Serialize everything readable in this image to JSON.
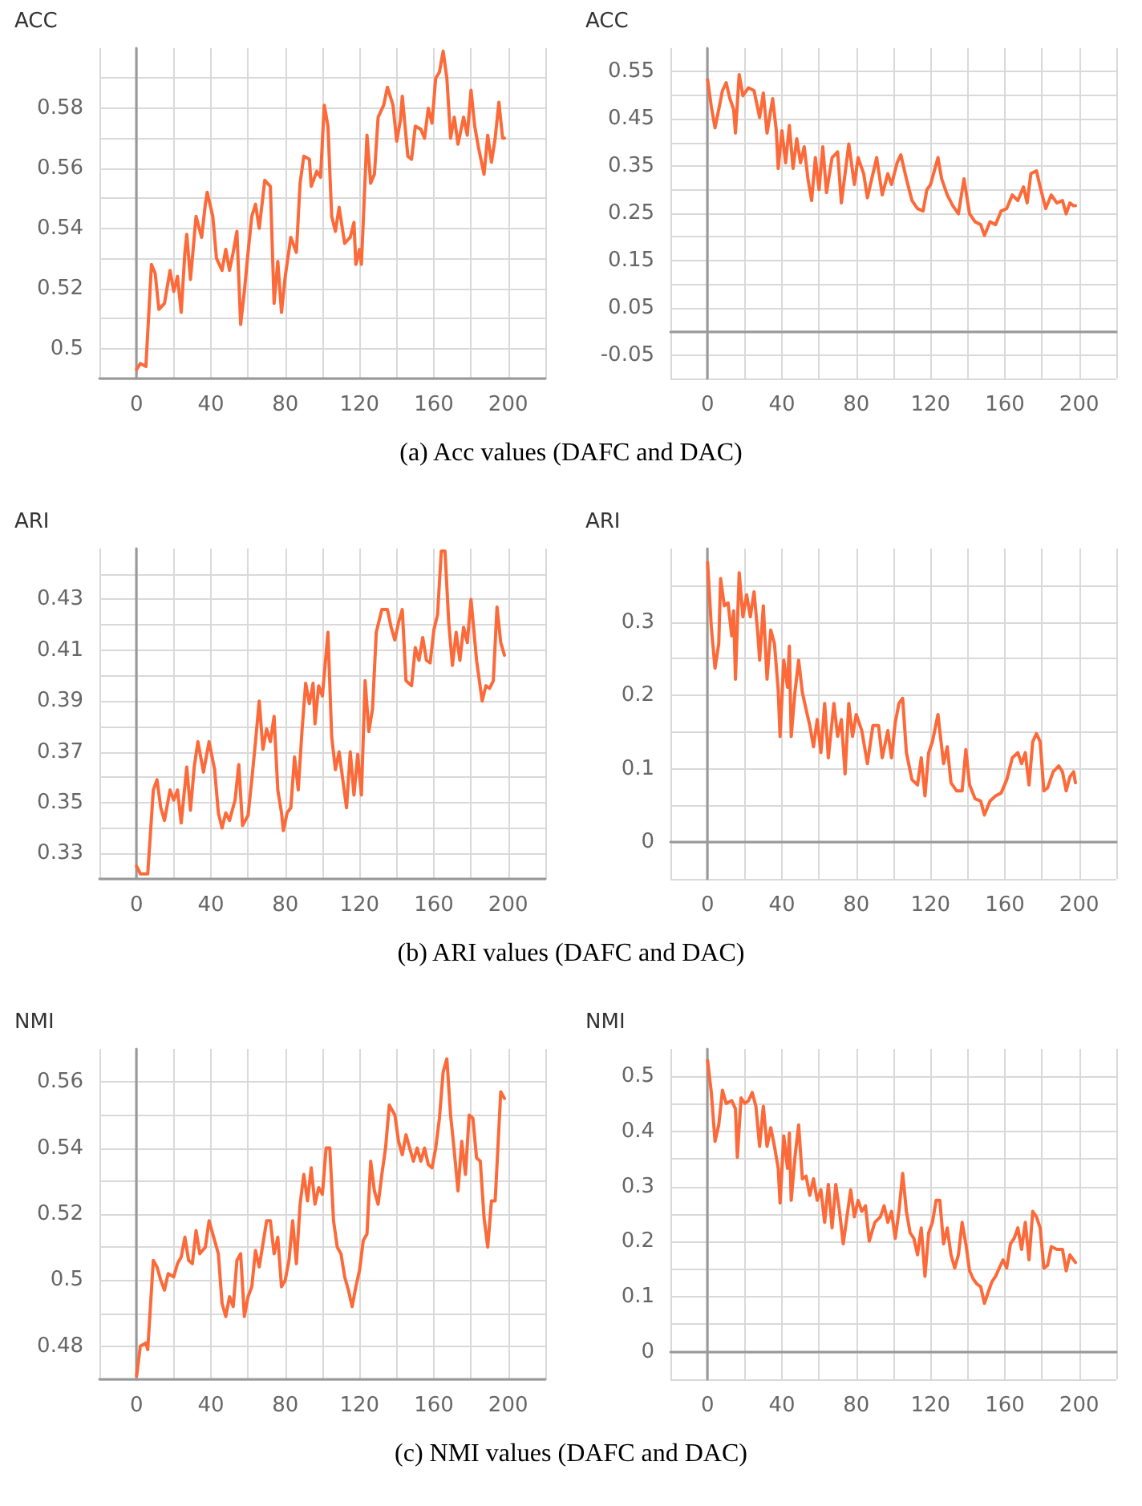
{
  "chart_data": [
    {
      "type": "line",
      "title": "ACC",
      "annotations": [
        "(a)  Acc values (DAFC and DAC)"
      ],
      "grid": true,
      "marker": "none",
      "line_style": "solid",
      "xlim": [
        -20,
        220
      ],
      "xticks": [
        {
          "value": -20,
          "label": null
        },
        0,
        {
          "value": 20,
          "label": null
        },
        40,
        {
          "value": 60,
          "label": null
        },
        80,
        {
          "value": 100,
          "label": null
        },
        120,
        {
          "value": 140,
          "label": null
        },
        160,
        {
          "value": 180,
          "label": null
        },
        200,
        {
          "value": 220,
          "label": null
        }
      ],
      "ylim": [
        0.49,
        0.6
      ],
      "yticks": [
        {
          "value": 0.49,
          "label": null
        },
        0.5,
        {
          "value": 0.51,
          "label": null
        },
        0.52,
        {
          "value": 0.53,
          "label": null
        },
        0.54,
        {
          "value": 0.55,
          "label": null
        },
        0.56,
        {
          "value": 0.57,
          "label": null
        },
        0.58,
        {
          "value": 0.59,
          "label": null
        }
      ],
      "series": [
        {
          "color": "#fc6a3a",
          "x": [
            0,
            2,
            5,
            8,
            10,
            12,
            15,
            18,
            20,
            22,
            24,
            26,
            27,
            29,
            32,
            35,
            37,
            38,
            41,
            43,
            46,
            48,
            50,
            52,
            54,
            56,
            58,
            60,
            62,
            64,
            66,
            69,
            72,
            74,
            76,
            78,
            80,
            83,
            86,
            88,
            90,
            93,
            94,
            97,
            99,
            101,
            103,
            105,
            107,
            109,
            112,
            115,
            117,
            118,
            120,
            121,
            124,
            126,
            128,
            130,
            133,
            135,
            138,
            140,
            142,
            143,
            146,
            148,
            150,
            153,
            155,
            157,
            159,
            161,
            163,
            165,
            167,
            169,
            171,
            173,
            176,
            178,
            180,
            182,
            184,
            187,
            189,
            191,
            193,
            195,
            197,
            198
          ],
          "values": [
            0.493,
            0.495,
            0.494,
            0.528,
            0.525,
            0.513,
            0.515,
            0.526,
            0.519,
            0.524,
            0.512,
            0.532,
            0.538,
            0.523,
            0.544,
            0.537,
            0.548,
            0.552,
            0.544,
            0.53,
            0.526,
            0.533,
            0.526,
            0.532,
            0.539,
            0.508,
            0.519,
            0.532,
            0.544,
            0.548,
            0.54,
            0.556,
            0.554,
            0.515,
            0.529,
            0.512,
            0.524,
            0.537,
            0.532,
            0.555,
            0.564,
            0.563,
            0.554,
            0.559,
            0.557,
            0.581,
            0.574,
            0.544,
            0.539,
            0.547,
            0.535,
            0.537,
            0.542,
            0.528,
            0.533,
            0.528,
            0.571,
            0.555,
            0.558,
            0.577,
            0.581,
            0.587,
            0.581,
            0.569,
            0.576,
            0.584,
            0.564,
            0.563,
            0.574,
            0.573,
            0.57,
            0.58,
            0.575,
            0.59,
            0.592,
            0.599,
            0.59,
            0.57,
            0.577,
            0.568,
            0.577,
            0.571,
            0.586,
            0.574,
            0.567,
            0.558,
            0.571,
            0.562,
            0.57,
            0.582,
            0.57,
            0.57
          ]
        }
      ]
    },
    {
      "type": "line",
      "title": "ACC",
      "grid": true,
      "marker": "none",
      "line_style": "solid",
      "xlim": [
        -20,
        220
      ],
      "xticks": [
        {
          "value": -20,
          "label": null
        },
        0,
        {
          "value": 20,
          "label": null
        },
        40,
        {
          "value": 60,
          "label": null
        },
        80,
        {
          "value": 100,
          "label": null
        },
        120,
        {
          "value": 140,
          "label": null
        },
        160,
        {
          "value": 180,
          "label": null
        },
        200,
        {
          "value": 220,
          "label": null
        }
      ],
      "ylim": [
        -0.1,
        0.6
      ],
      "yticks": [
        {
          "value": -0.1,
          "label": null
        },
        -0.05,
        {
          "value": 0,
          "label": null
        },
        0.05,
        {
          "value": 0.1,
          "label": null
        },
        0.15,
        {
          "value": 0.2,
          "label": null
        },
        0.25,
        {
          "value": 0.3,
          "label": null
        },
        0.35,
        {
          "value": 0.4,
          "label": null
        },
        0.45,
        {
          "value": 0.5,
          "label": null
        },
        0.55
      ],
      "series": [
        {
          "color": "#fc6a3a",
          "x": [
            0,
            2,
            4,
            6,
            8,
            10,
            12,
            14,
            15,
            17,
            19,
            22,
            25,
            28,
            30,
            32,
            35,
            37,
            38,
            40,
            42,
            44,
            46,
            48,
            50,
            52,
            54,
            56,
            58,
            60,
            62,
            64,
            67,
            70,
            72,
            74,
            76,
            79,
            81,
            84,
            86,
            88,
            91,
            94,
            97,
            99,
            102,
            104,
            107,
            110,
            113,
            116,
            118,
            120,
            124,
            126,
            129,
            132,
            135,
            138,
            141,
            144,
            147,
            149,
            152,
            155,
            158,
            161,
            164,
            167,
            170,
            172,
            174,
            177,
            179,
            182,
            185,
            188,
            191,
            193,
            195,
            197,
            198
          ],
          "values": [
            0.533,
            0.476,
            0.431,
            0.47,
            0.51,
            0.527,
            0.493,
            0.47,
            0.42,
            0.544,
            0.499,
            0.516,
            0.51,
            0.453,
            0.505,
            0.42,
            0.493,
            0.425,
            0.345,
            0.425,
            0.357,
            0.436,
            0.345,
            0.408,
            0.357,
            0.391,
            0.323,
            0.277,
            0.368,
            0.3,
            0.391,
            0.294,
            0.368,
            0.38,
            0.272,
            0.334,
            0.397,
            0.311,
            0.368,
            0.334,
            0.283,
            0.317,
            0.368,
            0.289,
            0.334,
            0.311,
            0.357,
            0.374,
            0.323,
            0.277,
            0.26,
            0.255,
            0.3,
            0.311,
            0.368,
            0.323,
            0.289,
            0.266,
            0.249,
            0.323,
            0.249,
            0.232,
            0.226,
            0.203,
            0.232,
            0.226,
            0.255,
            0.26,
            0.289,
            0.277,
            0.306,
            0.272,
            0.334,
            0.34,
            0.306,
            0.26,
            0.289,
            0.272,
            0.277,
            0.249,
            0.272,
            0.266,
            0.266
          ]
        }
      ]
    },
    {
      "type": "line",
      "title": "ARI",
      "annotations": [
        "(b)  ARI values (DAFC and DAC)"
      ],
      "grid": true,
      "marker": "none",
      "line_style": "solid",
      "xlim": [
        -20,
        220
      ],
      "xticks": [
        {
          "value": -20,
          "label": null
        },
        0,
        {
          "value": 20,
          "label": null
        },
        40,
        {
          "value": 60,
          "label": null
        },
        80,
        {
          "value": 100,
          "label": null
        },
        120,
        {
          "value": 140,
          "label": null
        },
        160,
        {
          "value": 180,
          "label": null
        },
        200,
        {
          "value": 220,
          "label": null
        }
      ],
      "ylim": [
        0.32,
        0.45
      ],
      "yticks": [
        {
          "value": 0.32,
          "label": null
        },
        0.33,
        {
          "value": 0.34,
          "label": null
        },
        0.35,
        {
          "value": 0.36,
          "label": null
        },
        0.37,
        {
          "value": 0.38,
          "label": null
        },
        0.39,
        {
          "value": 0.4,
          "label": null
        },
        0.41,
        {
          "value": 0.42,
          "label": null
        },
        0.43,
        {
          "value": 0.44,
          "label": null
        }
      ],
      "series": [
        {
          "color": "#fc6a3a",
          "x": [
            0,
            2,
            6,
            9,
            11,
            13,
            15,
            18,
            20,
            22,
            24,
            27,
            29,
            31,
            33,
            36,
            39,
            42,
            44,
            46,
            48,
            50,
            53,
            55,
            57,
            60,
            62,
            64,
            66,
            68,
            70,
            72,
            74,
            76,
            78,
            79,
            81,
            83,
            85,
            87,
            89,
            91,
            93,
            95,
            96,
            98,
            100,
            103,
            105,
            107,
            109,
            111,
            113,
            115,
            117,
            119,
            121,
            123,
            125,
            127,
            129,
            132,
            135,
            137,
            139,
            141,
            143,
            145,
            148,
            150,
            152,
            154,
            156,
            158,
            160,
            162,
            164,
            166,
            168,
            170,
            172,
            174,
            176,
            178,
            180,
            183,
            186,
            188,
            190,
            192,
            194,
            196,
            198
          ],
          "values": [
            0.325,
            0.322,
            0.322,
            0.355,
            0.359,
            0.348,
            0.343,
            0.355,
            0.351,
            0.355,
            0.342,
            0.364,
            0.347,
            0.364,
            0.374,
            0.362,
            0.374,
            0.363,
            0.346,
            0.34,
            0.346,
            0.343,
            0.351,
            0.365,
            0.341,
            0.345,
            0.359,
            0.374,
            0.39,
            0.371,
            0.379,
            0.374,
            0.384,
            0.355,
            0.346,
            0.339,
            0.346,
            0.348,
            0.368,
            0.355,
            0.378,
            0.397,
            0.389,
            0.397,
            0.381,
            0.396,
            0.392,
            0.417,
            0.376,
            0.363,
            0.37,
            0.359,
            0.348,
            0.37,
            0.353,
            0.369,
            0.353,
            0.398,
            0.378,
            0.387,
            0.417,
            0.426,
            0.426,
            0.419,
            0.414,
            0.421,
            0.426,
            0.398,
            0.396,
            0.411,
            0.406,
            0.415,
            0.406,
            0.405,
            0.418,
            0.424,
            0.449,
            0.449,
            0.421,
            0.404,
            0.417,
            0.406,
            0.419,
            0.413,
            0.43,
            0.406,
            0.39,
            0.396,
            0.395,
            0.398,
            0.427,
            0.413,
            0.408
          ]
        }
      ]
    },
    {
      "type": "line",
      "title": "ARI",
      "grid": true,
      "marker": "none",
      "line_style": "solid",
      "xlim": [
        -20,
        220
      ],
      "xticks": [
        {
          "value": -20,
          "label": null
        },
        0,
        {
          "value": 20,
          "label": null
        },
        40,
        {
          "value": 60,
          "label": null
        },
        80,
        {
          "value": 100,
          "label": null
        },
        120,
        {
          "value": 140,
          "label": null
        },
        160,
        {
          "value": 180,
          "label": null
        },
        200,
        {
          "value": 220,
          "label": null
        }
      ],
      "ylim": [
        -0.05,
        0.4
      ],
      "yticks": [
        {
          "value": -0.05,
          "label": null
        },
        0,
        {
          "value": 0.05,
          "label": null
        },
        0.1,
        {
          "value": 0.15,
          "label": null
        },
        0.2,
        {
          "value": 0.25,
          "label": null
        },
        0.3,
        {
          "value": 0.35,
          "label": null
        }
      ],
      "series": [
        {
          "color": "#fc6a3a",
          "x": [
            0,
            2,
            4,
            6,
            7,
            9,
            11,
            13,
            14,
            15,
            17,
            19,
            21,
            23,
            25,
            27,
            28,
            30,
            32,
            34,
            36,
            38,
            39,
            41,
            43,
            44,
            45,
            47,
            49,
            51,
            53,
            55,
            57,
            59,
            61,
            63,
            65,
            68,
            70,
            72,
            74,
            76,
            78,
            80,
            83,
            86,
            89,
            92,
            94,
            97,
            99,
            101,
            103,
            105,
            107,
            110,
            113,
            115,
            117,
            119,
            121,
            124,
            127,
            129,
            131,
            134,
            137,
            139,
            141,
            144,
            147,
            149,
            152,
            155,
            158,
            161,
            164,
            167,
            169,
            171,
            173,
            175,
            177,
            179,
            181,
            183,
            186,
            189,
            191,
            193,
            195,
            197,
            198
          ],
          "values": [
            0.381,
            0.293,
            0.237,
            0.27,
            0.359,
            0.322,
            0.326,
            0.281,
            0.315,
            0.222,
            0.367,
            0.307,
            0.337,
            0.307,
            0.341,
            0.285,
            0.248,
            0.322,
            0.222,
            0.289,
            0.27,
            0.207,
            0.144,
            0.248,
            0.211,
            0.267,
            0.144,
            0.204,
            0.248,
            0.204,
            0.181,
            0.159,
            0.13,
            0.167,
            0.122,
            0.189,
            0.115,
            0.189,
            0.144,
            0.167,
            0.093,
            0.189,
            0.144,
            0.174,
            0.152,
            0.107,
            0.159,
            0.159,
            0.115,
            0.152,
            0.115,
            0.163,
            0.189,
            0.196,
            0.122,
            0.085,
            0.078,
            0.115,
            0.063,
            0.122,
            0.137,
            0.174,
            0.107,
            0.13,
            0.081,
            0.07,
            0.07,
            0.126,
            0.078,
            0.059,
            0.056,
            0.037,
            0.056,
            0.063,
            0.067,
            0.085,
            0.115,
            0.122,
            0.107,
            0.122,
            0.078,
            0.137,
            0.148,
            0.137,
            0.07,
            0.074,
            0.096,
            0.104,
            0.096,
            0.07,
            0.089,
            0.096,
            0.081
          ]
        }
      ]
    },
    {
      "type": "line",
      "title": "NMI",
      "annotations": [
        "(c)  NMI values (DAFC and DAC)"
      ],
      "grid": true,
      "marker": "none",
      "line_style": "solid",
      "xlim": [
        -20,
        220
      ],
      "xticks": [
        {
          "value": -20,
          "label": null
        },
        0,
        {
          "value": 20,
          "label": null
        },
        40,
        {
          "value": 60,
          "label": null
        },
        80,
        {
          "value": 100,
          "label": null
        },
        120,
        {
          "value": 140,
          "label": null
        },
        160,
        {
          "value": 180,
          "label": null
        },
        200,
        {
          "value": 220,
          "label": null
        }
      ],
      "ylim": [
        0.47,
        0.57
      ],
      "yticks": [
        {
          "value": 0.47,
          "label": null
        },
        0.48,
        {
          "value": 0.49,
          "label": null
        },
        0.5,
        {
          "value": 0.51,
          "label": null
        },
        0.52,
        {
          "value": 0.53,
          "label": null
        },
        0.54,
        {
          "value": 0.55,
          "label": null
        },
        0.56
      ],
      "series": [
        {
          "color": "#fc6a3a",
          "x": [
            0,
            2,
            5,
            6,
            9,
            11,
            13,
            15,
            17,
            20,
            22,
            24,
            26,
            28,
            30,
            32,
            34,
            37,
            39,
            42,
            44,
            46,
            48,
            50,
            52,
            54,
            56,
            58,
            60,
            62,
            64,
            66,
            68,
            70,
            72,
            74,
            76,
            78,
            80,
            82,
            84,
            86,
            88,
            90,
            92,
            94,
            96,
            98,
            100,
            102,
            104,
            106,
            108,
            110,
            112,
            114,
            116,
            118,
            120,
            122,
            124,
            126,
            128,
            130,
            132,
            134,
            136,
            139,
            141,
            143,
            145,
            147,
            149,
            151,
            153,
            155,
            157,
            159,
            161,
            163,
            165,
            167,
            169,
            171,
            173,
            175,
            177,
            179,
            181,
            183,
            185,
            187,
            189,
            191,
            193,
            196,
            198
          ],
          "values": [
            0.471,
            0.48,
            0.481,
            0.479,
            0.506,
            0.504,
            0.5,
            0.497,
            0.502,
            0.501,
            0.505,
            0.507,
            0.513,
            0.506,
            0.505,
            0.515,
            0.508,
            0.51,
            0.518,
            0.512,
            0.508,
            0.493,
            0.489,
            0.495,
            0.492,
            0.506,
            0.508,
            0.489,
            0.495,
            0.498,
            0.509,
            0.504,
            0.511,
            0.518,
            0.518,
            0.508,
            0.513,
            0.498,
            0.5,
            0.506,
            0.518,
            0.505,
            0.523,
            0.532,
            0.524,
            0.534,
            0.523,
            0.528,
            0.526,
            0.54,
            0.54,
            0.518,
            0.51,
            0.508,
            0.501,
            0.497,
            0.492,
            0.498,
            0.503,
            0.512,
            0.514,
            0.536,
            0.527,
            0.523,
            0.532,
            0.54,
            0.553,
            0.55,
            0.542,
            0.538,
            0.544,
            0.54,
            0.536,
            0.54,
            0.536,
            0.54,
            0.535,
            0.534,
            0.54,
            0.549,
            0.563,
            0.567,
            0.55,
            0.539,
            0.527,
            0.542,
            0.532,
            0.55,
            0.549,
            0.537,
            0.536,
            0.519,
            0.51,
            0.524,
            0.524,
            0.557,
            0.555
          ]
        }
      ]
    },
    {
      "type": "line",
      "title": "NMI",
      "grid": true,
      "marker": "none",
      "line_style": "solid",
      "xlim": [
        -20,
        220
      ],
      "xticks": [
        {
          "value": -20,
          "label": null
        },
        0,
        {
          "value": 20,
          "label": null
        },
        40,
        {
          "value": 60,
          "label": null
        },
        80,
        {
          "value": 100,
          "label": null
        },
        120,
        {
          "value": 140,
          "label": null
        },
        160,
        {
          "value": 180,
          "label": null
        },
        200,
        {
          "value": 220,
          "label": null
        }
      ],
      "ylim": [
        -0.05,
        0.55
      ],
      "yticks": [
        {
          "value": -0.05,
          "label": null
        },
        0,
        {
          "value": 0.05,
          "label": null
        },
        0.1,
        {
          "value": 0.15,
          "label": null
        },
        0.2,
        {
          "value": 0.25,
          "label": null
        },
        0.3,
        {
          "value": 0.35,
          "label": null
        },
        0.4,
        {
          "value": 0.45,
          "label": null
        },
        0.5
      ],
      "series": [
        {
          "color": "#fc6a3a",
          "x": [
            0,
            2,
            4,
            6,
            8,
            10,
            13,
            15,
            16,
            18,
            20,
            22,
            24,
            26,
            28,
            30,
            32,
            34,
            36,
            38,
            39,
            41,
            43,
            44,
            45,
            47,
            49,
            51,
            53,
            55,
            57,
            59,
            61,
            63,
            65,
            67,
            69,
            71,
            73,
            75,
            77,
            79,
            81,
            83,
            85,
            87,
            90,
            93,
            95,
            97,
            99,
            101,
            103,
            105,
            107,
            109,
            111,
            113,
            115,
            117,
            119,
            121,
            123,
            125,
            127,
            129,
            131,
            133,
            135,
            137,
            139,
            141,
            143,
            145,
            147,
            149,
            151,
            153,
            155,
            157,
            159,
            161,
            163,
            165,
            167,
            169,
            171,
            173,
            175,
            177,
            179,
            181,
            183,
            185,
            188,
            191,
            193,
            195,
            198
          ],
          "values": [
            0.529,
            0.471,
            0.382,
            0.412,
            0.475,
            0.451,
            0.456,
            0.441,
            0.353,
            0.461,
            0.451,
            0.456,
            0.471,
            0.446,
            0.373,
            0.446,
            0.373,
            0.407,
            0.373,
            0.333,
            0.27,
            0.392,
            0.333,
            0.397,
            0.275,
            0.353,
            0.412,
            0.314,
            0.319,
            0.284,
            0.314,
            0.275,
            0.294,
            0.235,
            0.304,
            0.225,
            0.304,
            0.255,
            0.196,
            0.245,
            0.294,
            0.245,
            0.275,
            0.255,
            0.265,
            0.201,
            0.235,
            0.245,
            0.265,
            0.235,
            0.255,
            0.206,
            0.255,
            0.324,
            0.255,
            0.216,
            0.206,
            0.176,
            0.225,
            0.137,
            0.216,
            0.235,
            0.275,
            0.275,
            0.196,
            0.225,
            0.176,
            0.152,
            0.176,
            0.235,
            0.196,
            0.147,
            0.132,
            0.123,
            0.118,
            0.088,
            0.108,
            0.127,
            0.137,
            0.152,
            0.167,
            0.152,
            0.196,
            0.206,
            0.225,
            0.186,
            0.235,
            0.167,
            0.255,
            0.245,
            0.225,
            0.152,
            0.157,
            0.191,
            0.186,
            0.186,
            0.147,
            0.176,
            0.162
          ]
        }
      ]
    }
  ]
}
